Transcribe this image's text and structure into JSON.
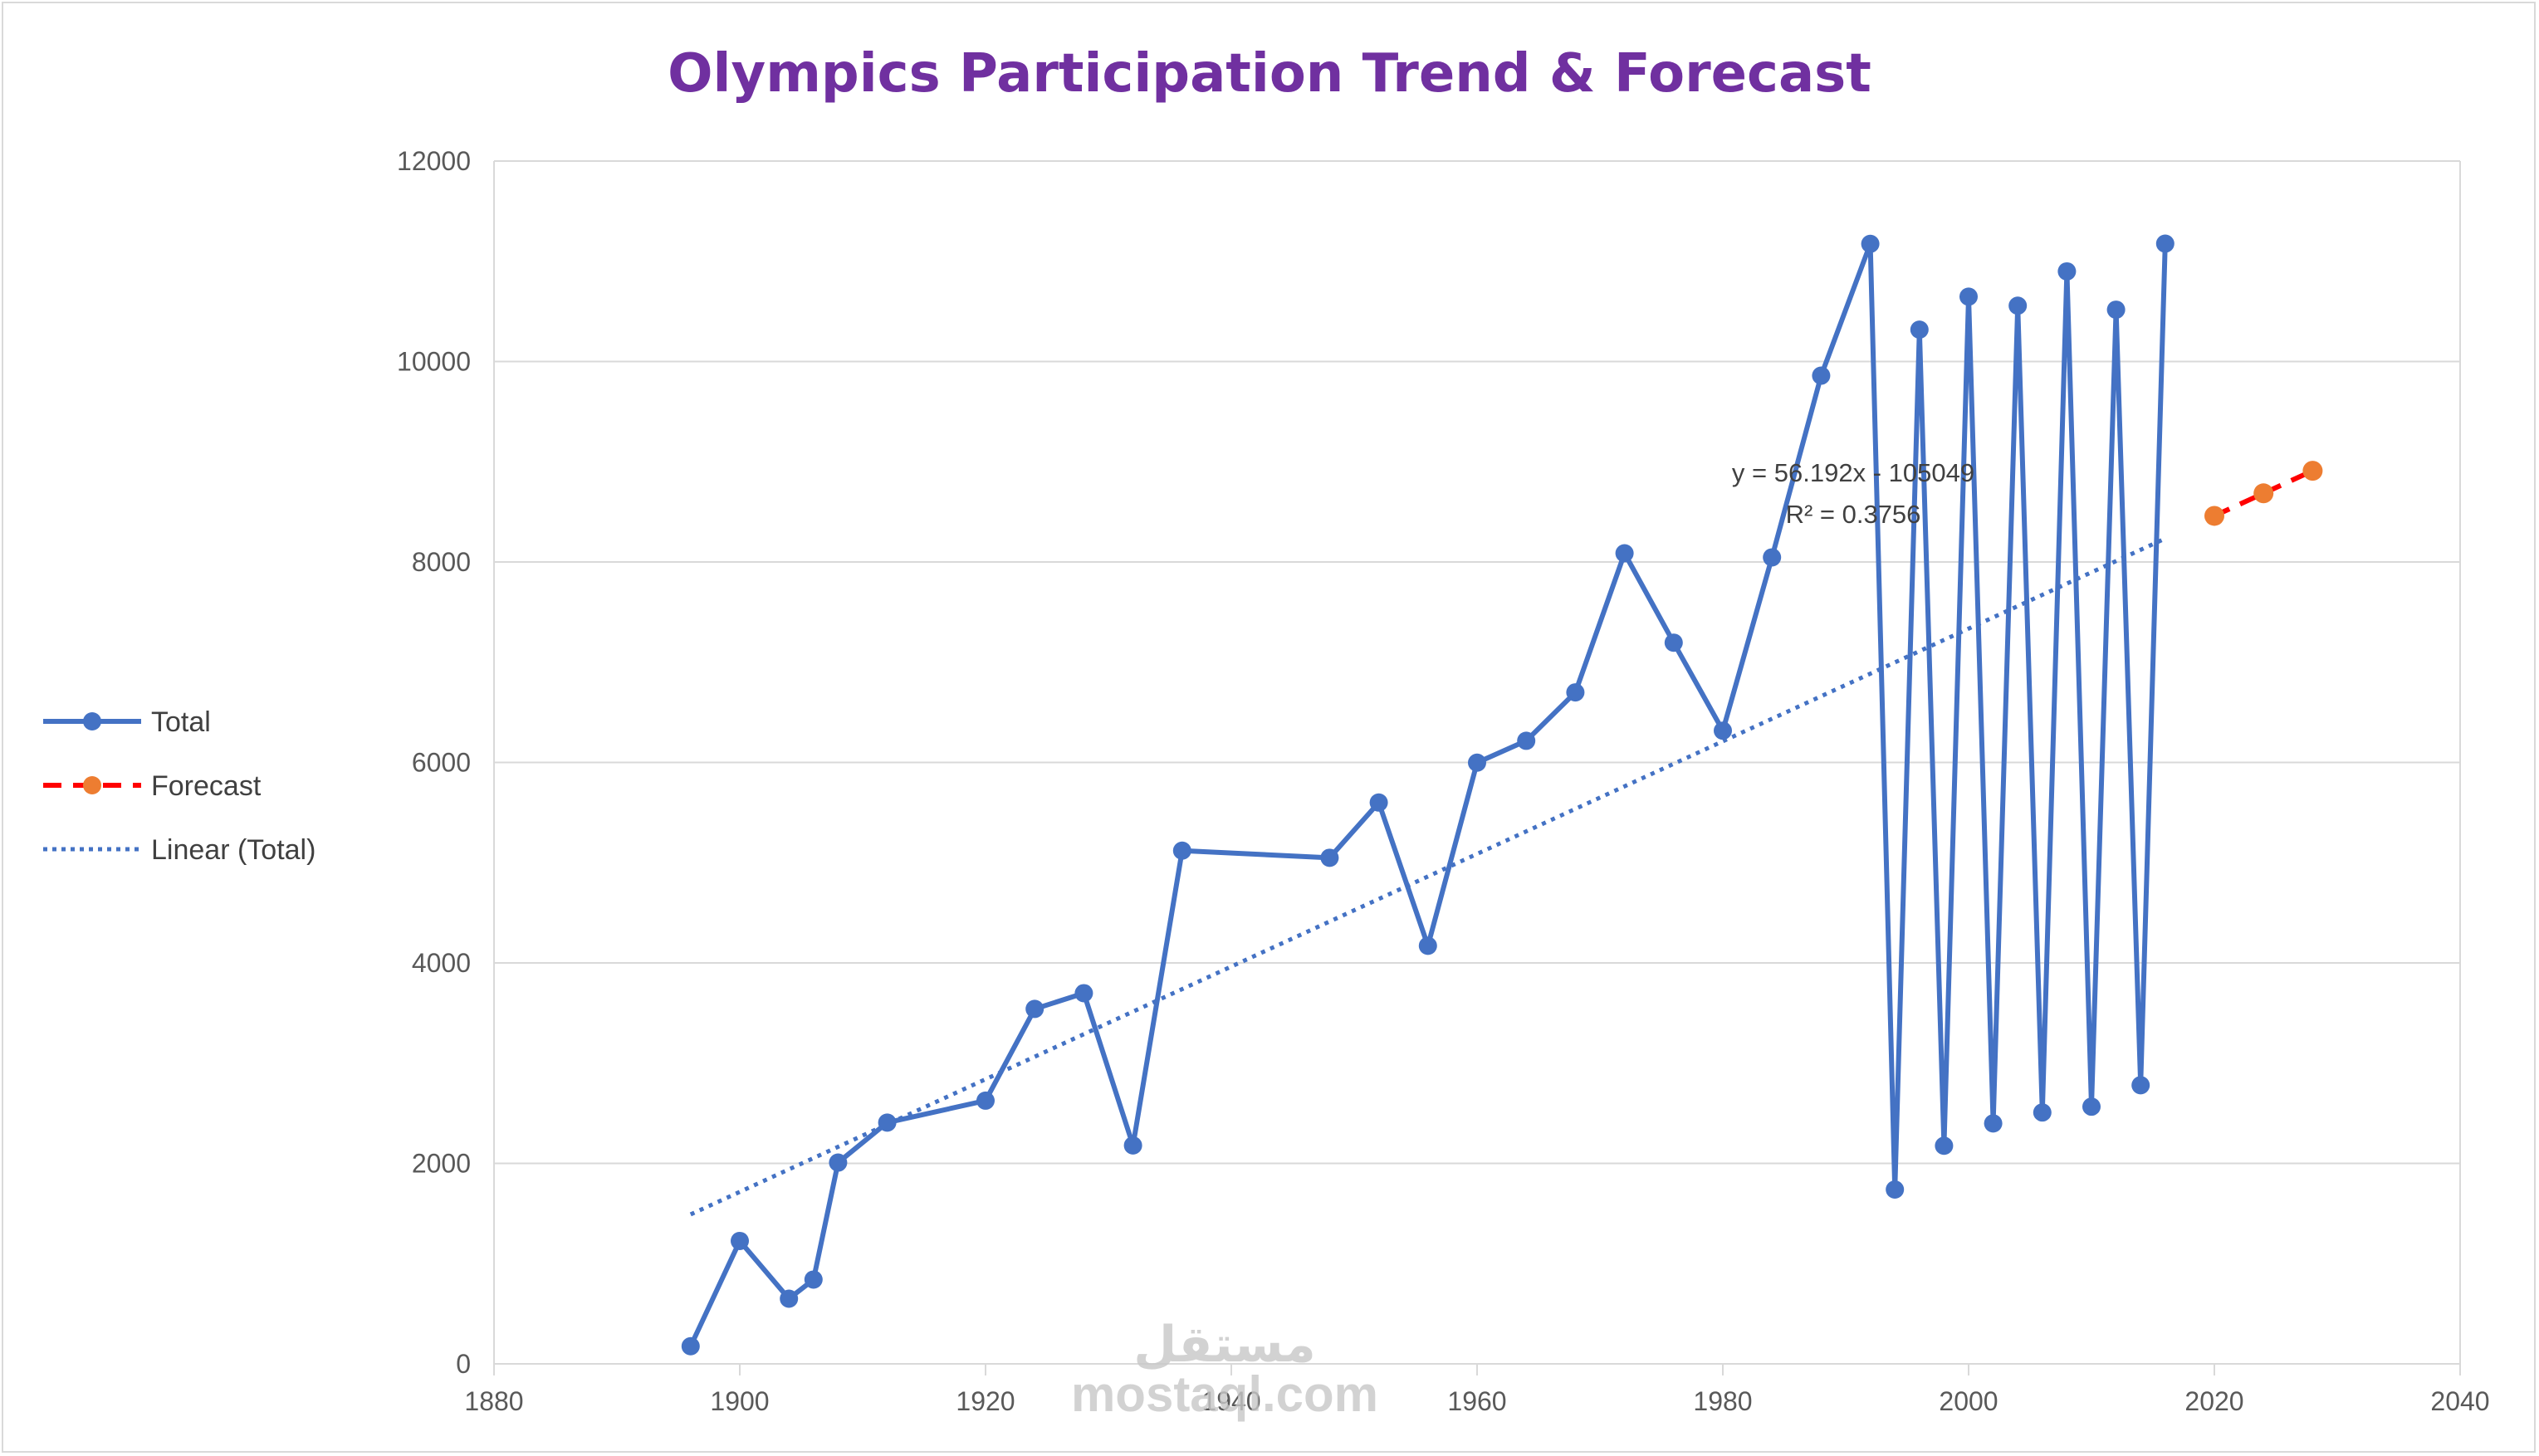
{
  "chart_data": {
    "type": "line",
    "title": "Olympics Participation Trend & Forecast",
    "xlabel": "",
    "ylabel": "",
    "xlim": [
      1880,
      2040
    ],
    "ylim": [
      0,
      12000
    ],
    "x_ticks": [
      1880,
      1900,
      1920,
      1940,
      1960,
      1980,
      2000,
      2020,
      2040
    ],
    "y_ticks": [
      0,
      2000,
      4000,
      6000,
      8000,
      10000,
      12000
    ],
    "grid": true,
    "legend_position": "left",
    "series": [
      {
        "name": "Total",
        "color": "#4472c4",
        "style": "solid-with-markers",
        "x": [
          1896,
          1900,
          1904,
          1906,
          1908,
          1912,
          1920,
          1924,
          1928,
          1932,
          1936,
          1948,
          1952,
          1956,
          1960,
          1964,
          1968,
          1972,
          1976,
          1980,
          1984,
          1988,
          1992,
          1994,
          1996,
          1998,
          2000,
          2002,
          2004,
          2006,
          2008,
          2010,
          2012,
          2014,
          2016
        ],
        "values": [
          176,
          1226,
          650,
          841,
          2008,
          2407,
          2626,
          3541,
          3698,
          2179,
          5120,
          5049,
          5600,
          4171,
          5998,
          6216,
          6699,
          8087,
          7195,
          6317,
          8046,
          9859,
          11174,
          1739,
          10318,
          2176,
          10647,
          2399,
          10557,
          2508,
          10899,
          2566,
          10517,
          2780,
          11176
        ]
      },
      {
        "name": "Forecast",
        "color": "#ed7d31",
        "line_color": "#ff0000",
        "style": "dashed-with-markers",
        "x": [
          2020,
          2024,
          2028
        ],
        "values": [
          8460,
          8685,
          8910
        ]
      },
      {
        "name": "Linear (Total)",
        "color": "#4472c4",
        "style": "dotted",
        "slope": 56.192,
        "intercept": -105049,
        "x_range": [
          1896,
          2016
        ]
      }
    ],
    "annotations": [
      "y = 56.192x - 105049",
      "R² = 0.3756"
    ]
  },
  "watermark": {
    "arabic": "مستقل",
    "latin": "mostaql.com"
  }
}
